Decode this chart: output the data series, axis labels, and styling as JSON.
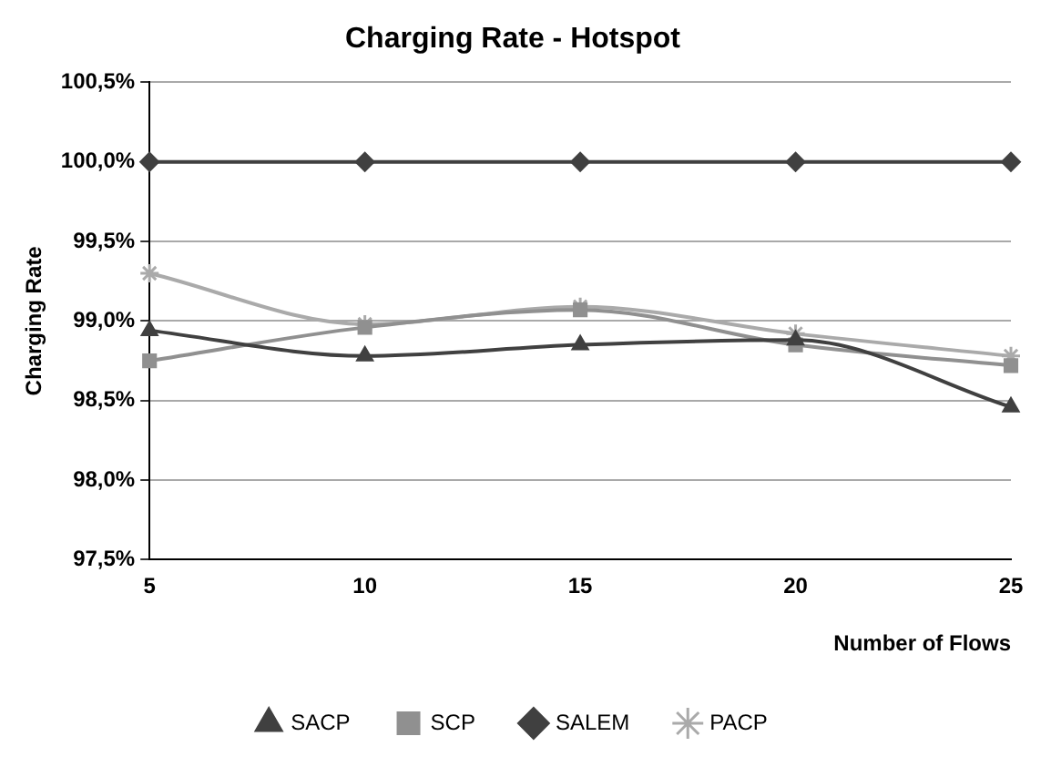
{
  "chart_data": {
    "type": "line",
    "title": "Charging Rate - Hotspot",
    "xlabel": "Number of Flows",
    "ylabel": "Charging Rate",
    "x": [
      5,
      10,
      15,
      20,
      25
    ],
    "xlim": [
      5,
      25
    ],
    "xticks": [
      5,
      10,
      15,
      20,
      25
    ],
    "ylim": [
      97.5,
      100.5
    ],
    "yticks": [
      {
        "value": 97.5,
        "label": "97,5%"
      },
      {
        "value": 98,
        "label": "98,0%"
      },
      {
        "value": 98.5,
        "label": "98,5%"
      },
      {
        "value": 99,
        "label": "99,0%"
      },
      {
        "value": 99.5,
        "label": "99,5%"
      },
      {
        "value": 100,
        "label": "100,0%"
      },
      {
        "value": 100.5,
        "label": "100,5%"
      }
    ],
    "grid": "y",
    "legend": "bottom",
    "line_style": "solid",
    "series": [
      {
        "name": "PACP",
        "color": "#aaaaaa",
        "marker": "cross",
        "values": [
          99.3,
          98.98,
          99.09,
          98.92,
          98.78
        ]
      },
      {
        "name": "SACP",
        "color": "#404040",
        "marker": "triangle",
        "values": [
          98.94,
          98.78,
          98.85,
          98.88,
          98.46
        ]
      },
      {
        "name": "SCP",
        "color": "#909090",
        "marker": "square",
        "values": [
          98.75,
          98.96,
          99.07,
          98.85,
          98.72
        ]
      },
      {
        "name": "SALEM",
        "color": "#404040",
        "marker": "diamond",
        "values": [
          100,
          100,
          100,
          100,
          100
        ]
      }
    ]
  }
}
